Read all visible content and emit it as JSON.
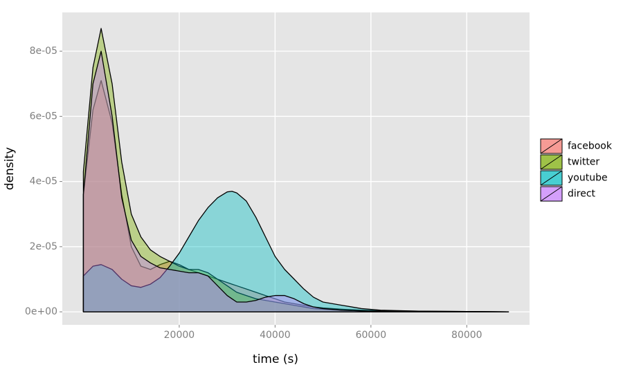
{
  "chart_data": {
    "type": "area",
    "x_label": "time (s)",
    "y_label": "density",
    "x": [
      0,
      2000,
      3700,
      6000,
      8000,
      10000,
      12000,
      14000,
      16000,
      18000,
      20000,
      22000,
      24000,
      26000,
      28000,
      30000,
      31000,
      32000,
      34000,
      36000,
      38000,
      40000,
      42000,
      44000,
      46000,
      48000,
      50000,
      54000,
      58000,
      62000,
      70000,
      80000,
      88700
    ],
    "series": [
      {
        "name": "facebook",
        "color": "#F8766D",
        "values": [
          3.6e-05,
          6.2e-05,
          7.1e-05,
          5.8e-05,
          3.6e-05,
          2e-05,
          1.4e-05,
          1.3e-05,
          1.45e-05,
          1.55e-05,
          1.45e-05,
          1.3e-05,
          1.2e-05,
          1.1e-05,
          1e-05,
          9e-06,
          8.5e-06,
          8e-06,
          7e-06,
          6e-06,
          5e-06,
          4e-06,
          3e-06,
          2.5e-06,
          2e-06,
          1.5e-06,
          1.2e-06,
          8e-07,
          5e-07,
          3e-07,
          2e-07,
          1e-07,
          0
        ]
      },
      {
        "name": "twitter",
        "color": "#7CAE00",
        "values": [
          4.3e-05,
          7.5e-05,
          8.7e-05,
          7e-05,
          4.6e-05,
          3e-05,
          2.3e-05,
          1.9e-05,
          1.7e-05,
          1.55e-05,
          1.4e-05,
          1.3e-05,
          1.3e-05,
          1.2e-05,
          1e-05,
          8e-06,
          7e-06,
          6e-06,
          5e-06,
          4e-06,
          3.5e-06,
          3e-06,
          2.5e-06,
          2e-06,
          1.5e-06,
          1e-06,
          8e-07,
          5e-07,
          3e-07,
          2e-07,
          1e-07,
          5e-08,
          0
        ]
      },
      {
        "name": "youtube",
        "color": "#00BFC4",
        "values": [
          1.1e-05,
          1.4e-05,
          1.45e-05,
          1.3e-05,
          1e-05,
          8e-06,
          7.5e-06,
          8.5e-06,
          1.05e-05,
          1.4e-05,
          1.8e-05,
          2.3e-05,
          2.8e-05,
          3.2e-05,
          3.5e-05,
          3.68e-05,
          3.7e-05,
          3.65e-05,
          3.4e-05,
          2.9e-05,
          2.3e-05,
          1.7e-05,
          1.3e-05,
          1e-05,
          7e-06,
          4.5e-06,
          3e-06,
          2e-06,
          1e-06,
          5e-07,
          2e-07,
          1e-07,
          0
        ]
      },
      {
        "name": "direct",
        "color": "#C77CFF",
        "values": [
          3.6e-05,
          7e-05,
          8e-05,
          6e-05,
          3.5e-05,
          2.2e-05,
          1.7e-05,
          1.5e-05,
          1.35e-05,
          1.3e-05,
          1.25e-05,
          1.2e-05,
          1.2e-05,
          1.1e-05,
          8e-06,
          5e-06,
          4e-06,
          3e-06,
          3e-06,
          3.5e-06,
          4.5e-06,
          5e-06,
          5e-06,
          4e-06,
          2.5e-06,
          1.5e-06,
          1e-06,
          5e-07,
          3e-07,
          2e-07,
          1e-07,
          5e-08,
          0
        ]
      }
    ],
    "xlim": [
      -4400,
      93100
    ],
    "ylim": [
      -4e-06,
      9.19e-05
    ],
    "xticks": [
      20000,
      40000,
      60000,
      80000
    ],
    "yticks": [
      {
        "value": 0,
        "label": "0e+00"
      },
      {
        "value": 2e-05,
        "label": "2e-05"
      },
      {
        "value": 4e-05,
        "label": "4e-05"
      },
      {
        "value": 6e-05,
        "label": "6e-05"
      },
      {
        "value": 8e-05,
        "label": "8e-05"
      }
    ],
    "grid": true,
    "legend": "right"
  }
}
